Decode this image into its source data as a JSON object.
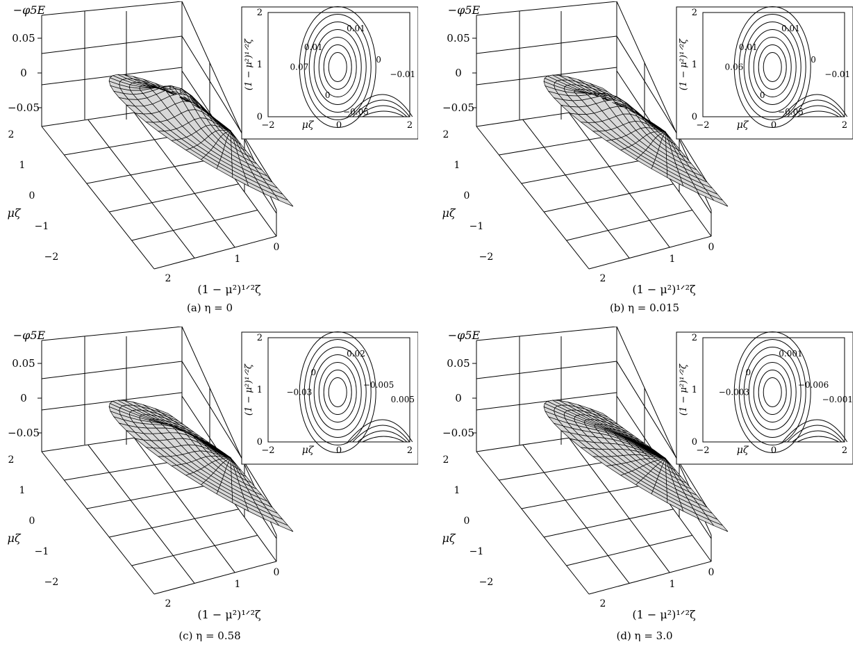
{
  "chart_data": [
    {
      "type": "surface",
      "caption": "(a) η = 0",
      "eta": "0",
      "zlabel": "−φ5E",
      "z_ticks": [
        "0.05",
        "0",
        "−0.05"
      ],
      "mu_zeta_ticks": [
        "2",
        "1",
        "0",
        "−1",
        "−2"
      ],
      "mu_zeta_label": "μζ",
      "r_ticks": [
        "2",
        "1",
        "0"
      ],
      "r_label": "(1 − μ²)^{1/2}ζ",
      "zlim": [
        -0.05,
        0.05
      ],
      "inset": {
        "type": "contour",
        "x_ticks": [
          "−2",
          "0",
          "2"
        ],
        "y_ticks": [
          "0",
          "1",
          "2"
        ],
        "xlabel": "μζ",
        "ylabel": "(1 − μ²)^{1/2}ζ",
        "labels": [
          "0.01",
          "0",
          "−0.01",
          "0.01",
          "0.07",
          "0",
          "−0.05"
        ]
      }
    },
    {
      "type": "surface",
      "caption": "(b) η = 0.015",
      "eta": "0.015",
      "zlabel": "−φ5E",
      "z_ticks": [
        "0.05",
        "0",
        "−0.05"
      ],
      "mu_zeta_ticks": [
        "2",
        "1",
        "0",
        "−1",
        "−2"
      ],
      "mu_zeta_label": "μζ",
      "r_ticks": [
        "2",
        "1",
        "0"
      ],
      "r_label": "(1 − μ²)^{1/2}ζ",
      "zlim": [
        -0.05,
        0.05
      ],
      "inset": {
        "type": "contour",
        "x_ticks": [
          "−2",
          "0",
          "2"
        ],
        "y_ticks": [
          "0",
          "1",
          "2"
        ],
        "xlabel": "μζ",
        "ylabel": "(1 − μ²)^{1/2}ζ",
        "labels": [
          "0.01",
          "0",
          "−0.01",
          "0.01",
          "0.06",
          "0",
          "−0.05"
        ]
      }
    },
    {
      "type": "surface",
      "caption": "(c) η = 0.58",
      "eta": "0.58",
      "zlabel": "−φ5E",
      "z_ticks": [
        "0.05",
        "0",
        "−0.05"
      ],
      "mu_zeta_ticks": [
        "2",
        "1",
        "0",
        "−1",
        "−2"
      ],
      "mu_zeta_label": "μζ",
      "r_ticks": [
        "2",
        "1",
        "0"
      ],
      "r_label": "(1 − μ²)^{1/2}ζ",
      "zlim": [
        -0.05,
        0.05
      ],
      "inset": {
        "type": "contour",
        "x_ticks": [
          "−2",
          "0",
          "2"
        ],
        "y_ticks": [
          "0",
          "1",
          "2"
        ],
        "xlabel": "μζ",
        "ylabel": "(1 − μ²)^{1/2}ζ",
        "labels": [
          "0.02",
          "−0.005",
          "0.005",
          "0",
          "−0.03"
        ]
      }
    },
    {
      "type": "surface",
      "caption": "(d) η = 3.0",
      "eta": "3.0",
      "zlabel": "−φ5E",
      "z_ticks": [
        "0.05",
        "0",
        "−0.05"
      ],
      "mu_zeta_ticks": [
        "2",
        "1",
        "0",
        "−1",
        "−2"
      ],
      "mu_zeta_label": "μζ",
      "r_ticks": [
        "2",
        "1",
        "0"
      ],
      "r_label": "(1 − μ²)^{1/2}ζ",
      "zlim": [
        -0.05,
        0.05
      ],
      "inset": {
        "type": "contour",
        "x_ticks": [
          "−2",
          "0",
          "2"
        ],
        "y_ticks": [
          "0",
          "1",
          "2"
        ],
        "xlabel": "μζ",
        "ylabel": "(1 − μ²)^{1/2}ζ",
        "labels": [
          "0.001",
          "−0.006",
          "−0.001",
          "0",
          "−0.003"
        ]
      }
    }
  ]
}
